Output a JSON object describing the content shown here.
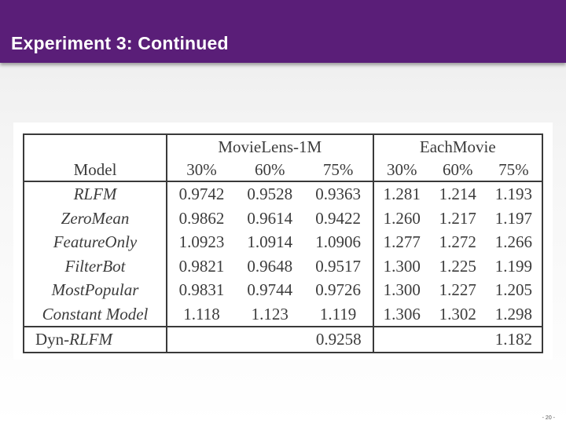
{
  "slide": {
    "title": "Experiment 3: Continued",
    "page_number": "- 20 -"
  },
  "table": {
    "group_headers": [
      "MovieLens-1M",
      "EachMovie"
    ],
    "model_header": "Model",
    "sub_headers": [
      "30%",
      "60%",
      "75%",
      "30%",
      "60%",
      "75%"
    ],
    "rows": [
      {
        "model": "RLFM",
        "values": [
          "0.9742",
          "0.9528",
          "0.9363",
          "1.281",
          "1.214",
          "1.193"
        ]
      },
      {
        "model": "ZeroMean",
        "values": [
          "0.9862",
          "0.9614",
          "0.9422",
          "1.260",
          "1.217",
          "1.197"
        ]
      },
      {
        "model": "FeatureOnly",
        "values": [
          "1.0923",
          "1.0914",
          "1.0906",
          "1.277",
          "1.272",
          "1.266"
        ]
      },
      {
        "model": "FilterBot",
        "values": [
          "0.9821",
          "0.9648",
          "0.9517",
          "1.300",
          "1.225",
          "1.199"
        ]
      },
      {
        "model": "MostPopular",
        "values": [
          "0.9831",
          "0.9744",
          "0.9726",
          "1.300",
          "1.227",
          "1.205"
        ]
      },
      {
        "model": "Constant Model",
        "values": [
          "1.118",
          "1.123",
          "1.119",
          "1.306",
          "1.302",
          "1.298"
        ]
      }
    ],
    "dyn_row": {
      "model_prefix": "Dyn-",
      "model_suffix": "RLFM",
      "movielens_75": "0.9258",
      "eachmovie_75": "1.182"
    }
  }
}
